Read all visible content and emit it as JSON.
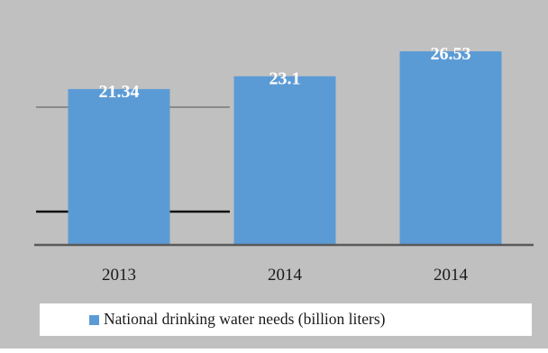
{
  "chart_data": {
    "type": "bar",
    "title": "",
    "xlabel": "",
    "ylabel": "",
    "categories": [
      "2013",
      "2014",
      "2014"
    ],
    "series": [
      {
        "name": "National drinking water needs (billion liters)",
        "values": [
          21.34,
          23.1,
          26.53
        ],
        "labels": [
          "21.34",
          "23.1",
          "26.53"
        ],
        "color": "#5b9bd5"
      }
    ],
    "ylim": [
      0,
      30
    ],
    "grid": false,
    "legend_position": "bottom",
    "colors": {
      "background": "#c0c0c0",
      "bar": "#5b9bd5",
      "axis": "#595959",
      "legend_box": "#ffffff",
      "data_label": "#ffffff"
    }
  }
}
